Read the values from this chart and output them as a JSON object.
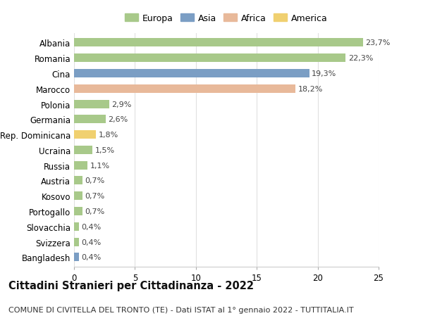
{
  "countries": [
    "Albania",
    "Romania",
    "Cina",
    "Marocco",
    "Polonia",
    "Germania",
    "Rep. Dominicana",
    "Ucraina",
    "Russia",
    "Austria",
    "Kosovo",
    "Portogallo",
    "Slovacchia",
    "Svizzera",
    "Bangladesh"
  ],
  "values": [
    23.7,
    22.3,
    19.3,
    18.2,
    2.9,
    2.6,
    1.8,
    1.5,
    1.1,
    0.7,
    0.7,
    0.7,
    0.4,
    0.4,
    0.4
  ],
  "labels": [
    "23,7%",
    "22,3%",
    "19,3%",
    "18,2%",
    "2,9%",
    "2,6%",
    "1,8%",
    "1,5%",
    "1,1%",
    "0,7%",
    "0,7%",
    "0,7%",
    "0,4%",
    "0,4%",
    "0,4%"
  ],
  "continents": [
    "Europa",
    "Europa",
    "Asia",
    "Africa",
    "Europa",
    "Europa",
    "America",
    "Europa",
    "Europa",
    "Europa",
    "Europa",
    "Europa",
    "Europa",
    "Europa",
    "Asia"
  ],
  "colors": {
    "Europa": "#a8c98a",
    "Asia": "#7b9ec4",
    "Africa": "#e8b99a",
    "America": "#f0d070"
  },
  "xlim": [
    0,
    25
  ],
  "xticks": [
    0,
    5,
    10,
    15,
    20,
    25
  ],
  "title": "Cittadini Stranieri per Cittadinanza - 2022",
  "subtitle": "COMUNE DI CIVITELLA DEL TRONTO (TE) - Dati ISTAT al 1° gennaio 2022 - TUTTITALIA.IT",
  "background_color": "#ffffff",
  "grid_color": "#e0e0e0",
  "bar_height": 0.55,
  "title_fontsize": 10.5,
  "subtitle_fontsize": 8,
  "label_fontsize": 8,
  "tick_fontsize": 8.5,
  "legend_fontsize": 9,
  "legend_order": [
    "Europa",
    "Asia",
    "Africa",
    "America"
  ]
}
